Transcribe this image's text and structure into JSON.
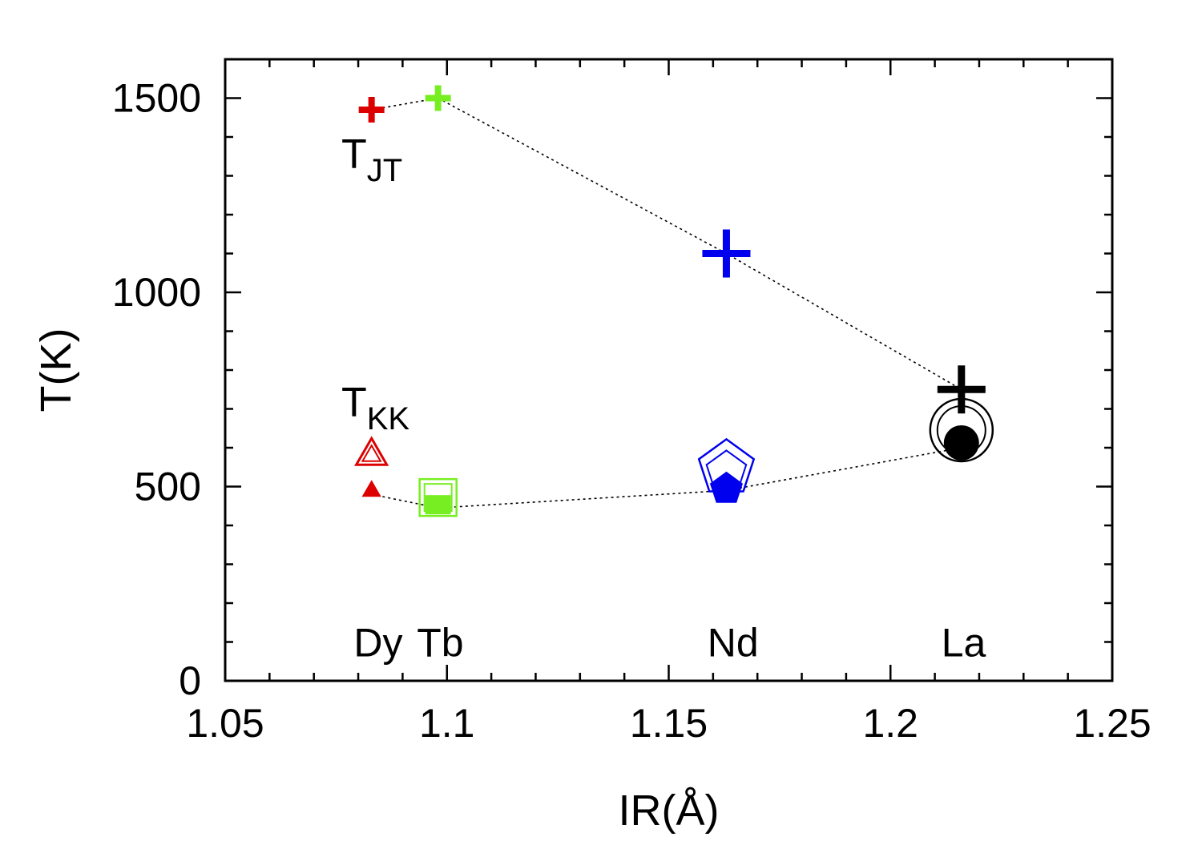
{
  "chart_data": {
    "type": "scatter",
    "title": "",
    "xlabel": "IR(Å)",
    "ylabel": "T(K)",
    "xlim": [
      1.05,
      1.25
    ],
    "ylim": [
      0,
      1600
    ],
    "xticks": [
      {
        "value": 1.05,
        "label": "1.05"
      },
      {
        "value": 1.1,
        "label": "1.1"
      },
      {
        "value": 1.15,
        "label": "1.15"
      },
      {
        "value": 1.2,
        "label": "1.2"
      },
      {
        "value": 1.25,
        "label": "1.25"
      }
    ],
    "yticks": [
      {
        "value": 0,
        "label": "0"
      },
      {
        "value": 500,
        "label": "500"
      },
      {
        "value": 1000,
        "label": "1000"
      },
      {
        "value": 1500,
        "label": "1500"
      }
    ],
    "grid": false,
    "series": [
      {
        "name": "T_JT",
        "label_main": "T",
        "label_sub": "JT",
        "label_pos": {
          "x": 1.0845,
          "y": 1320
        },
        "connector": "dotted",
        "points": [
          {
            "element": "Dy",
            "x": 1.083,
            "y": 1470,
            "color": "#dd0000",
            "marker": "plus"
          },
          {
            "element": "Tb",
            "x": 1.098,
            "y": 1500,
            "color": "#77ee22",
            "marker": "plus"
          },
          {
            "element": "Nd",
            "x": 1.163,
            "y": 1100,
            "color": "#0000ee",
            "marker": "plus"
          },
          {
            "element": "La",
            "x": 1.216,
            "y": 750,
            "color": "#000000",
            "marker": "plus"
          }
        ]
      },
      {
        "name": "T_KK",
        "label_main": "T",
        "label_sub": "KK",
        "label_pos": {
          "x": 1.0845,
          "y": 680
        },
        "connector": "dotted",
        "points": [
          {
            "element": "Dy",
            "x": 1.083,
            "y": 480,
            "color": "#dd0000",
            "marker": "triangle"
          },
          {
            "element": "Tb",
            "x": 1.098,
            "y": 445,
            "color": "#77ee22",
            "marker": "square"
          },
          {
            "element": "Nd",
            "x": 1.163,
            "y": 490,
            "color": "#0000ee",
            "marker": "pentagon"
          },
          {
            "element": "La",
            "x": 1.216,
            "y": 600,
            "color": "#000000",
            "marker": "circle"
          }
        ]
      }
    ],
    "element_labels": [
      {
        "text": "Dy",
        "x": 1.0845
      },
      {
        "text": "Tb",
        "x": 1.0985
      },
      {
        "text": "Nd",
        "x": 1.1645
      },
      {
        "text": "La",
        "x": 1.2165
      }
    ],
    "element_label_y": 100
  }
}
